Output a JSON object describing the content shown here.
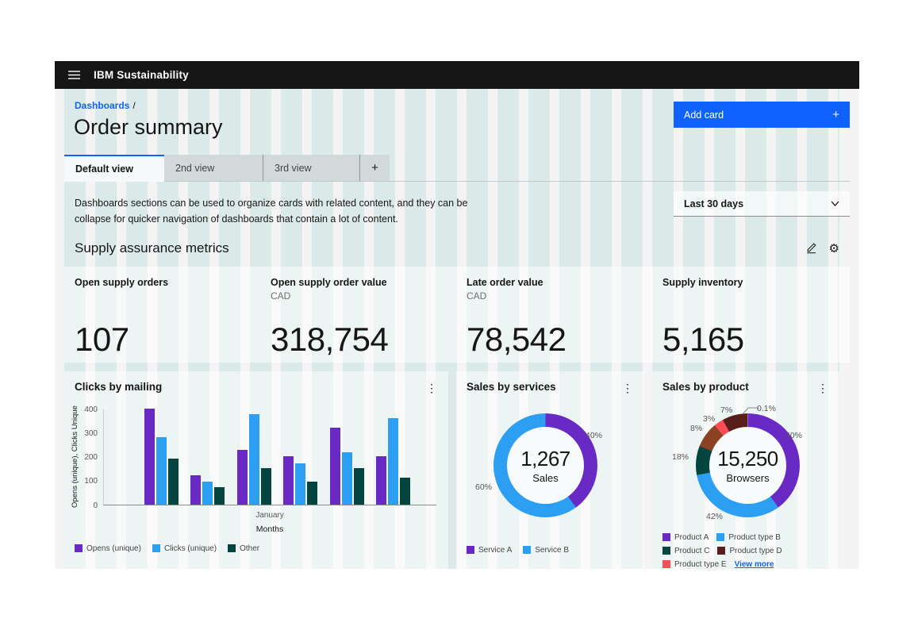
{
  "header": {
    "title": "IBM Sustainability"
  },
  "breadcrumb": {
    "link": "Dashboards",
    "separator": "/"
  },
  "page": {
    "title": "Order summary"
  },
  "actions": {
    "add_card_label": "Add card",
    "add_card_icon": "+"
  },
  "tabs": {
    "items": [
      {
        "label": "Default view",
        "active": true
      },
      {
        "label": "2nd view",
        "active": false
      },
      {
        "label": "3rd view",
        "active": false
      }
    ],
    "add_tab_label": "+"
  },
  "description": "Dashboards sections can be used to organize cards with related content, and they can be collapse for quicker navigation of dashboards that contain a lot of content.",
  "time_filter": {
    "value": "Last 30 days"
  },
  "section": {
    "title": "Supply assurance metrics"
  },
  "kpis": [
    {
      "label": "Open supply orders",
      "sublabel": "",
      "value": "107"
    },
    {
      "label": "Open supply order value",
      "sublabel": "CAD",
      "value": "318,754"
    },
    {
      "label": "Late order value",
      "sublabel": "CAD",
      "value": "78,542"
    },
    {
      "label": "Supply inventory",
      "sublabel": "",
      "value": "5,165"
    }
  ],
  "icons": {
    "overflow": "⋮"
  },
  "colors": {
    "accent": "#0f62fe",
    "header": "#161616",
    "purple": "#6929c4",
    "blue": "#2d9ff2",
    "teal": "#04463f"
  },
  "chart_data": [
    {
      "type": "bar",
      "title": "Clicks by mailing",
      "ylabel": "Opens (unique), Clicks Unique",
      "xlabel": "Months",
      "x_tick": "January",
      "ylim": [
        0,
        400
      ],
      "yticks": [
        0,
        100,
        200,
        300,
        400
      ],
      "grid": false,
      "legend_position": "bottom",
      "series": [
        {
          "name": "Opens (unique)",
          "color": "#6929c4",
          "values": [
            400,
            120,
            225,
            200,
            320,
            200
          ]
        },
        {
          "name": "Clicks (unique)",
          "color": "#2d9ff2",
          "values": [
            280,
            95,
            375,
            170,
            215,
            360
          ]
        },
        {
          "name": "Other",
          "color": "#04463f",
          "values": [
            190,
            70,
            150,
            95,
            150,
            110
          ]
        }
      ]
    },
    {
      "type": "pie",
      "title": "Sales by services",
      "center_value": "1,267",
      "center_label": "Sales",
      "segments": [
        {
          "name": "Service A",
          "label": "40%",
          "value": 40,
          "color": "#6929c4"
        },
        {
          "name": "Service B",
          "label": "60%",
          "value": 60,
          "color": "#2d9ff2"
        }
      ],
      "legend": [
        {
          "label": "Service A",
          "color": "#6929c4"
        },
        {
          "label": "Service B",
          "color": "#2d9ff2"
        }
      ]
    },
    {
      "type": "pie",
      "title": "Sales by product",
      "center_value": "15,250",
      "center_label": "Browsers",
      "segments": [
        {
          "name": "Product A",
          "label": "40%",
          "value": 40,
          "sweep_pct": 40,
          "color": "#6929c4"
        },
        {
          "name": "Product type B",
          "label": "42%",
          "value": 42,
          "sweep_pct": 32,
          "color": "#2d9ff2"
        },
        {
          "name": "Product C",
          "label": "18%",
          "value": 18,
          "sweep_pct": 9,
          "color": "#04463f"
        },
        {
          "name": "",
          "label": "8%",
          "value": 8,
          "sweep_pct": 8,
          "color": "#8a4222"
        },
        {
          "name": "Product type E",
          "label": "3%",
          "value": 3,
          "sweep_pct": 3,
          "color": "#fa4d56"
        },
        {
          "name": "Product type D",
          "label": "7%",
          "value": 7,
          "sweep_pct": 7.9,
          "color": "#571e1a"
        },
        {
          "name": "",
          "label": "0.1%",
          "value": 0.1,
          "sweep_pct": 0.1,
          "color": "#adb5b5"
        }
      ],
      "legend": [
        {
          "label": "Product A",
          "color": "#6929c4"
        },
        {
          "label": "Product type B",
          "color": "#2d9ff2"
        },
        {
          "label": "Product C",
          "color": "#04463f"
        },
        {
          "label": "Product type D",
          "color": "#571e1a"
        },
        {
          "label": "Product type E",
          "color": "#fa4d56"
        }
      ],
      "view_more": "View more"
    }
  ]
}
